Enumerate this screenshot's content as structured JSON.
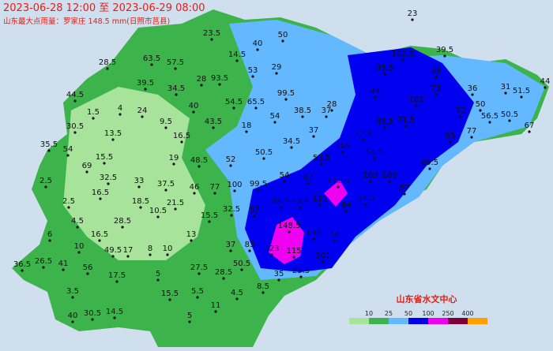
{
  "header": {
    "title": "2023-06-28 12:00 至 2023-06-29 08:00",
    "subtitle": "山东最大点雨量：罗家庄 148.5 mm(日照市莒县)"
  },
  "stations": [
    23,
    50,
    23.5,
    14.5,
    40,
    63.5,
    57.5,
    28.5,
    39.5,
    35.5,
    48,
    102.5,
    29,
    53,
    93.5,
    28,
    34.5,
    39.5,
    44.5,
    1.5,
    4,
    40,
    54.5,
    65.5,
    99.5,
    44,
    75,
    36,
    31,
    51.5,
    44,
    102,
    28,
    38.5,
    37,
    54,
    88.5,
    71.5,
    72,
    50,
    56.5,
    50.5,
    67,
    24,
    9.5,
    43.5,
    18,
    37,
    72.9,
    55,
    77,
    30.5,
    13.5,
    16.5,
    34.5,
    105,
    35.5,
    54,
    19,
    48.5,
    52,
    50.5,
    53.5,
    54.5,
    69.5,
    15.5,
    69,
    32.5,
    33,
    37.5,
    46,
    77,
    100,
    99.5,
    54,
    87,
    121.5,
    109,
    108,
    57,
    2.5,
    16.5,
    18.5,
    21.5,
    84.5,
    73.5,
    121,
    64,
    57.5,
    2.5,
    10.5,
    15.5,
    32.5,
    57,
    28.5,
    4.5,
    148.5,
    107,
    16.5,
    13,
    83,
    123,
    115,
    74,
    6,
    10,
    49.5,
    17,
    8,
    10,
    37,
    101,
    26.5,
    41,
    56,
    36.5,
    17.5,
    5,
    27.5,
    50.5,
    28.5,
    25.5,
    35,
    3.5,
    15.5,
    5.5,
    4.5,
    8.5,
    11,
    14.5,
    30.5,
    40,
    5
  ],
  "legend": {
    "ticks": [
      10,
      25,
      50,
      100,
      250,
      400
    ],
    "colors": [
      "#a8e39c",
      "#3cb44b",
      "#63b8ff",
      "#0000f0",
      "#f000f0",
      "#80003c",
      "#ffa000"
    ]
  },
  "credit": "山东省水文中心"
}
